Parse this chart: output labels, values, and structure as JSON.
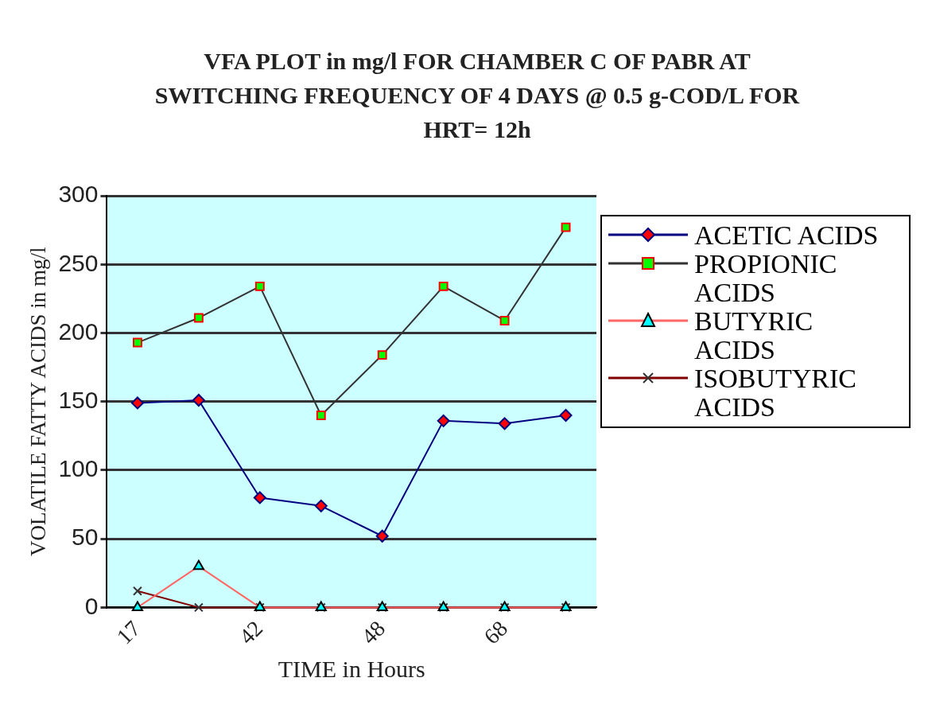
{
  "chart_data": {
    "type": "line",
    "title": "VFA PLOT in mg/l FOR CHAMBER C OF PABR AT SWITCHING FREQUENCY OF 4 DAYS @ 0.5 g-COD/L FOR HRT= 12h",
    "xlabel": "TIME in Hours",
    "ylabel": "VOLATILE FATTY ACIDS in mg/l",
    "categories": [
      "17",
      null,
      "42",
      null,
      "48",
      null,
      "68",
      null
    ],
    "series": [
      {
        "name": "ACETIC ACIDS",
        "color": "#000080",
        "marker": "diamond",
        "values": [
          149,
          151,
          80,
          74,
          52,
          136,
          134,
          140
        ]
      },
      {
        "name": "PROPIONIC ACIDS",
        "color": "#333333",
        "marker": "square",
        "values": [
          193,
          211,
          234,
          140,
          184,
          234,
          209,
          277
        ]
      },
      {
        "name": "BUTYRIC ACIDS",
        "color": "#ff6666",
        "marker": "triangle",
        "values": [
          0,
          30,
          0,
          0,
          0,
          0,
          0,
          0
        ]
      },
      {
        "name": "ISOBUTYRIC ACIDS",
        "color": "#800000",
        "marker": "cross",
        "values": [
          12,
          0,
          0,
          0,
          0,
          0,
          0,
          0
        ]
      }
    ],
    "ylim": [
      0,
      300
    ],
    "yticks": [
      0,
      50,
      100,
      150,
      200,
      250,
      300
    ],
    "grid": "y",
    "legend": "right"
  }
}
